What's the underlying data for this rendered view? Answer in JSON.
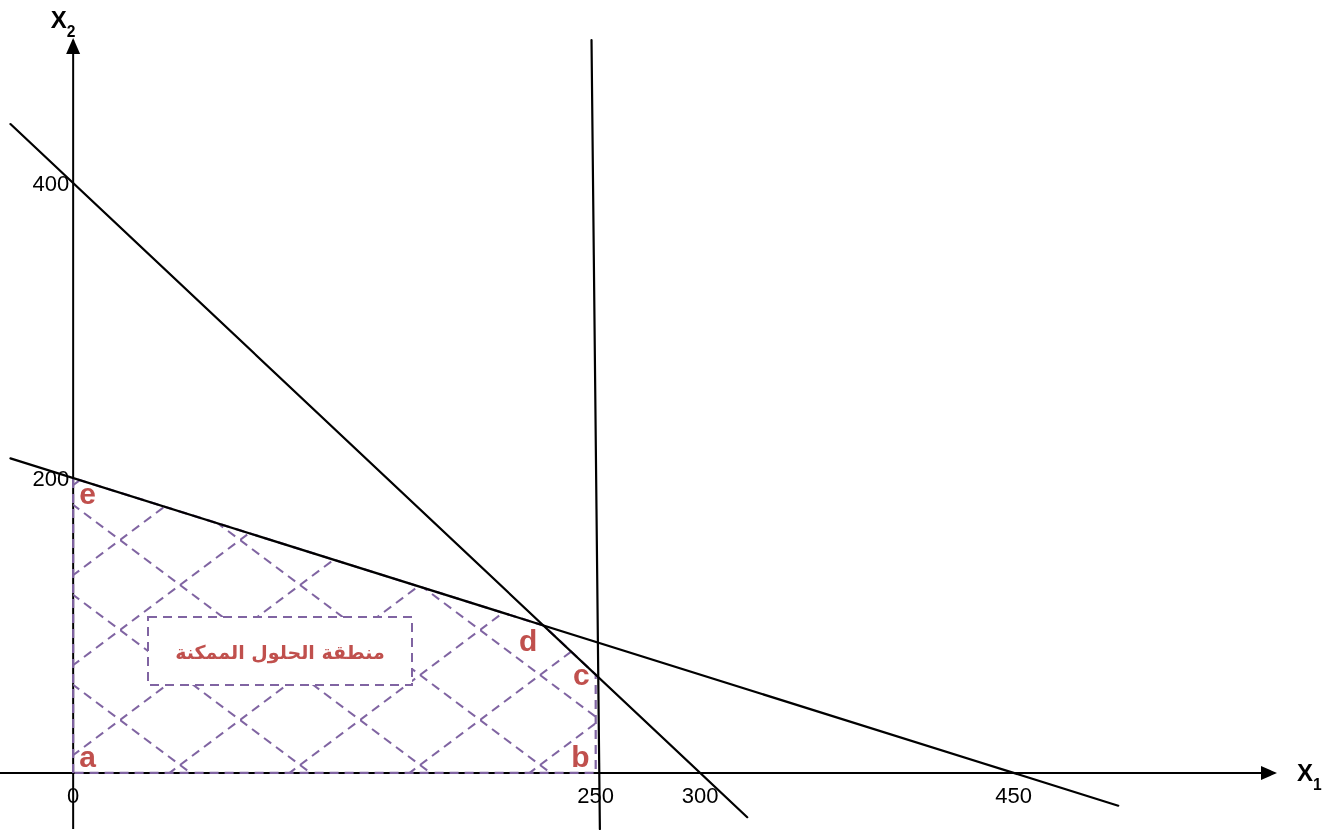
{
  "chart_data": {
    "type": "line",
    "xlabel": "X$_{1}$",
    "ylabel": "X$_{2}$",
    "series": [
      {
        "type": "area",
        "x": [
          0,
          225,
          250
        ],
        "values": [
          200,
          100,
          66.7
        ],
        "color": "#8064a2",
        "line_style": "dashed"
      },
      {
        "type": "line",
        "x": [
          -30,
          322.5
        ],
        "values": [
          440,
          -30
        ],
        "color": "#000000",
        "line_style": "solid"
      },
      {
        "type": "line",
        "x": [
          -30,
          500
        ],
        "values": [
          213.3,
          -22.2
        ],
        "color": "#000000",
        "line_style": "solid"
      },
      {
        "type": "line",
        "x": [
          248,
          252
        ],
        "values": [
          497,
          -38
        ],
        "color": "#000000",
        "line_style": "solid"
      }
    ],
    "xlim": [
      -35,
      575
    ],
    "ylim": [
      -38,
      497
    ],
    "xticks": [
      0,
      250,
      300,
      450
    ],
    "yticks": [
      200,
      400
    ],
    "grid": false,
    "marker": "none",
    "annotations": [
      {
        "text": "a",
        "x": 0,
        "y": 0
      },
      {
        "text": "b",
        "x": 250,
        "y": 0
      },
      {
        "text": "c",
        "x": 250,
        "y": 66.7
      },
      {
        "text": "d",
        "x": 225,
        "y": 100
      },
      {
        "text": "e",
        "x": 0,
        "y": 200
      },
      "منطقة الحلول الممكنة"
    ]
  }
}
